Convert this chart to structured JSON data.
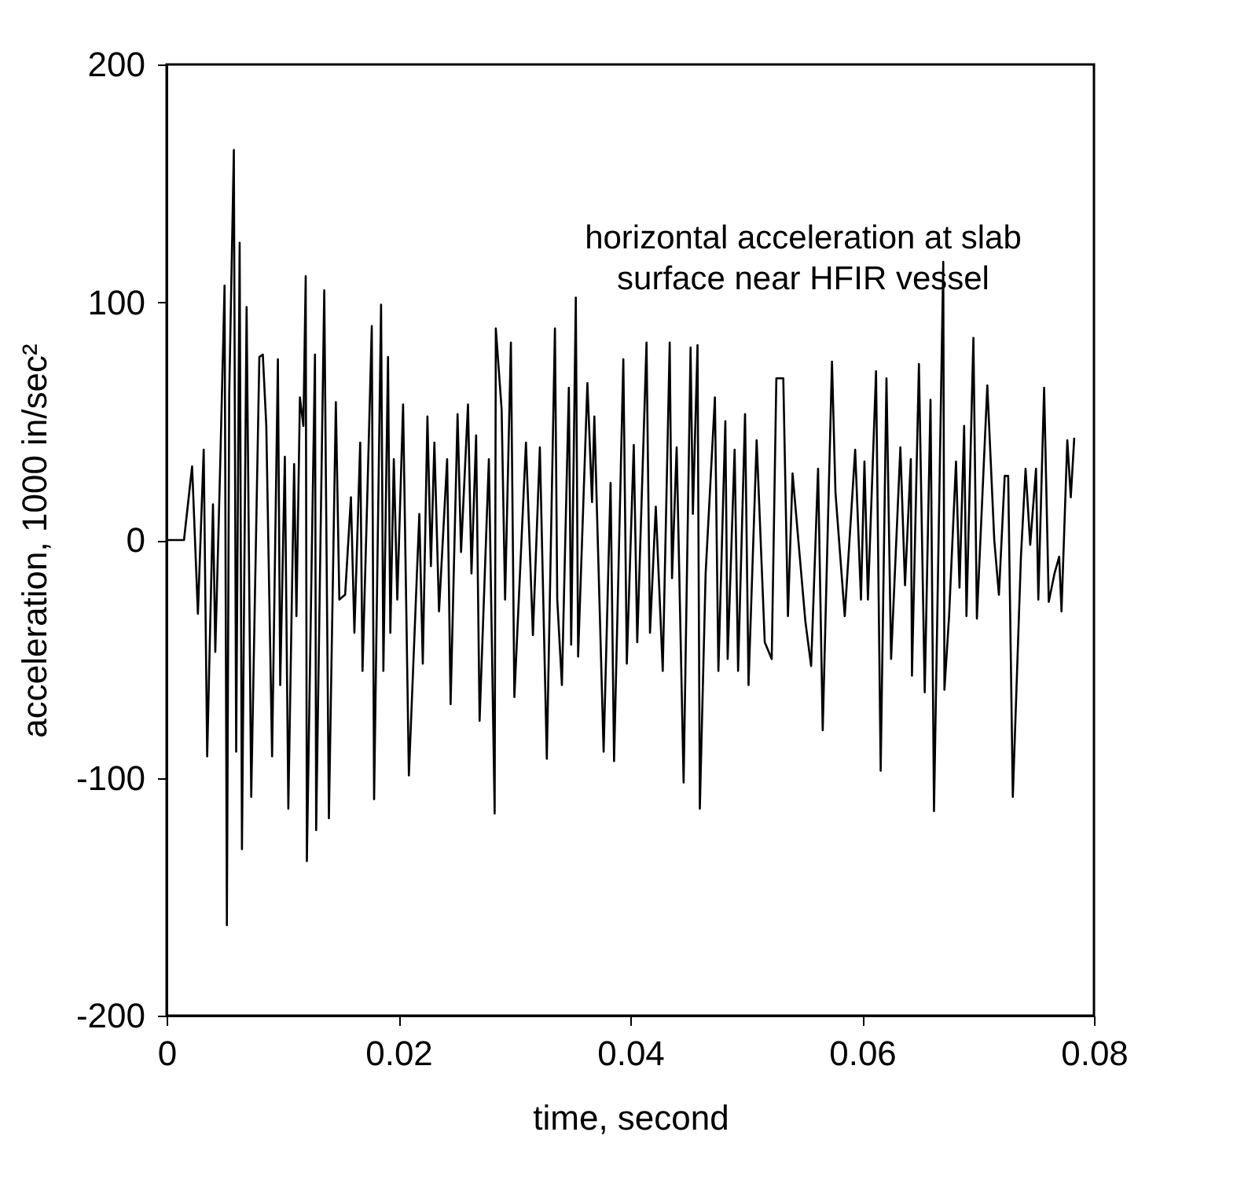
{
  "chart_data": {
    "type": "line",
    "xlabel": "time, second",
    "ylabel": "acceleration, 1000 in/sec²",
    "annotations": [
      "horizontal acceleration at slab\nsurface near HFIR vessel"
    ],
    "xlim": [
      0,
      0.08
    ],
    "xticks": [
      0,
      0.02,
      0.04,
      0.06,
      0.08
    ],
    "ylim": [
      -200,
      200
    ],
    "yticks": [
      -200,
      -100,
      0,
      100,
      200
    ],
    "grid": false,
    "legend": false,
    "marker": "none",
    "line_style": "solid",
    "series": [
      {
        "color": "#000000",
        "x": [
          0.0001,
          0.0015,
          0.0022,
          0.0027,
          0.0032,
          0.0035,
          0.004,
          0.0042,
          0.0046,
          0.005,
          0.0052,
          0.0054,
          0.0058,
          0.006,
          0.0063,
          0.0065,
          0.0069,
          0.0073,
          0.008,
          0.0083,
          0.0086,
          0.0091,
          0.0096,
          0.0098,
          0.0102,
          0.0105,
          0.011,
          0.0112,
          0.0115,
          0.0118,
          0.012,
          0.0121,
          0.0128,
          0.0129,
          0.0136,
          0.014,
          0.0146,
          0.0149,
          0.0154,
          0.0159,
          0.0162,
          0.0167,
          0.0169,
          0.0173,
          0.0177,
          0.0179,
          0.0185,
          0.0187,
          0.0191,
          0.0193,
          0.0196,
          0.0199,
          0.0204,
          0.0209,
          0.0218,
          0.0221,
          0.0225,
          0.0228,
          0.0231,
          0.0235,
          0.0242,
          0.0245,
          0.0251,
          0.0254,
          0.026,
          0.0263,
          0.0267,
          0.027,
          0.0278,
          0.0283,
          0.0284,
          0.0289,
          0.0292,
          0.0297,
          0.03,
          0.031,
          0.0316,
          0.0322,
          0.0328,
          0.0335,
          0.0337,
          0.0341,
          0.0347,
          0.0349,
          0.0353,
          0.0355,
          0.0363,
          0.0367,
          0.0369,
          0.0377,
          0.0383,
          0.0386,
          0.0394,
          0.0397,
          0.0403,
          0.0406,
          0.0414,
          0.0417,
          0.0422,
          0.0428,
          0.0434,
          0.0436,
          0.044,
          0.0446,
          0.0452,
          0.0454,
          0.0458,
          0.046,
          0.0465,
          0.0473,
          0.0476,
          0.0482,
          0.0484,
          0.049,
          0.0493,
          0.0499,
          0.0502,
          0.0509,
          0.0516,
          0.0522,
          0.0526,
          0.0532,
          0.0536,
          0.054,
          0.0551,
          0.0556,
          0.0562,
          0.0566,
          0.0574,
          0.0577,
          0.0585,
          0.0594,
          0.0599,
          0.0602,
          0.0605,
          0.0612,
          0.0616,
          0.0621,
          0.0625,
          0.0633,
          0.0637,
          0.0642,
          0.0643,
          0.0649,
          0.0654,
          0.0659,
          0.0662,
          0.067,
          0.0671,
          0.0675,
          0.0681,
          0.0684,
          0.0688,
          0.069,
          0.0696,
          0.0699,
          0.0708,
          0.0714,
          0.0718,
          0.0723,
          0.0726,
          0.073,
          0.0737,
          0.0741,
          0.0745,
          0.075,
          0.0752,
          0.0757,
          0.0761,
          0.0766,
          0.077,
          0.0772,
          0.0777,
          0.078,
          0.0783
        ],
        "values": [
          0,
          0,
          31,
          -31,
          38,
          -91,
          15,
          -47,
          27,
          107,
          -162,
          61,
          164,
          -89,
          125,
          -130,
          98,
          -108,
          77,
          78,
          48,
          -91,
          76,
          -61,
          35,
          -113,
          32,
          -32,
          60,
          48,
          111,
          -135,
          78,
          -122,
          105,
          -117,
          58,
          -25,
          -23,
          18,
          -39,
          41,
          -55,
          16,
          90,
          -109,
          99,
          -55,
          77,
          -39,
          34,
          -25,
          57,
          -99,
          11,
          -52,
          52,
          -11,
          41,
          -30,
          34,
          -69,
          53,
          -5,
          57,
          -14,
          44,
          -76,
          34,
          -115,
          89,
          55,
          -25,
          83,
          -66,
          41,
          -40,
          39,
          -92,
          89,
          -25,
          -61,
          64,
          -44,
          102,
          -49,
          66,
          16,
          52,
          -89,
          24,
          -93,
          76,
          -52,
          40,
          -43,
          83,
          -39,
          14,
          -55,
          83,
          -16,
          39,
          -102,
          81,
          11,
          82,
          -113,
          -14,
          60,
          -55,
          50,
          -50,
          38,
          -55,
          53,
          -61,
          42,
          -43,
          -50,
          68,
          68,
          -32,
          28,
          -34,
          -53,
          30,
          -80,
          75,
          20,
          -32,
          38,
          -25,
          33,
          -25,
          71,
          -97,
          68,
          -50,
          39,
          -19,
          34,
          -57,
          74,
          -64,
          59,
          -114,
          117,
          -63,
          -32,
          33,
          -20,
          48,
          -32,
          85,
          -33,
          65,
          0,
          -23,
          27,
          27,
          -108,
          -7,
          30,
          -2,
          30,
          -25,
          64,
          -26,
          -14,
          -7,
          -30,
          42,
          18,
          43
        ]
      }
    ]
  }
}
